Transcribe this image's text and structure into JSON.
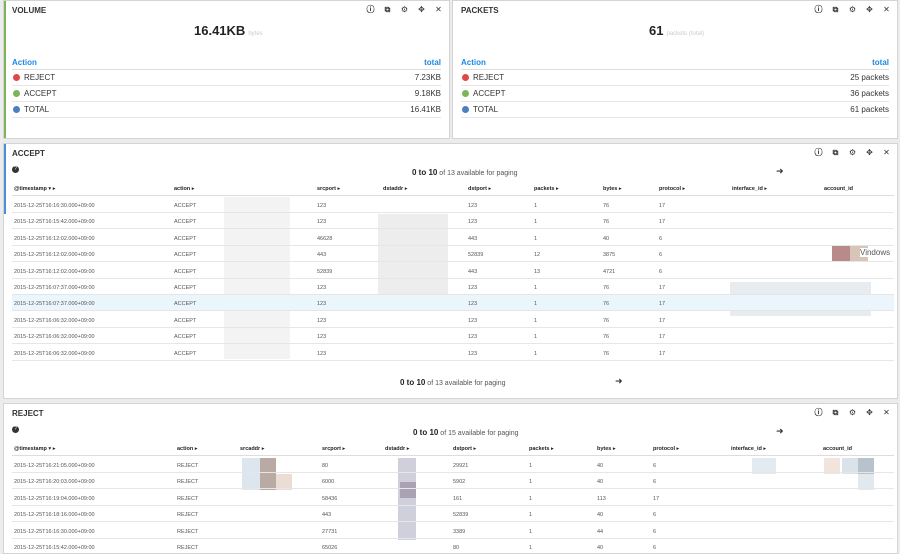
{
  "volume": {
    "title": "VOLUME",
    "total": "16.41KB",
    "total_unit": "bytes",
    "col_action": "Action",
    "col_total": "total",
    "rows": [
      {
        "label": "REJECT",
        "value": "7.23KB",
        "color": "#e04848"
      },
      {
        "label": "ACCEPT",
        "value": "9.18KB",
        "color": "#7cb45a"
      },
      {
        "label": "TOTAL",
        "value": "16.41KB",
        "color": "#4a7fc2"
      }
    ]
  },
  "packets": {
    "title": "PACKETS",
    "total": "61",
    "total_unit": "packets (total)",
    "col_action": "Action",
    "col_total": "total",
    "rows": [
      {
        "label": "REJECT",
        "value": "25 packets",
        "color": "#e04848"
      },
      {
        "label": "ACCEPT",
        "value": "36 packets",
        "color": "#7cb45a"
      },
      {
        "label": "TOTAL",
        "value": "61 packets",
        "color": "#4a7fc2"
      }
    ]
  },
  "panel_icons": [
    "info-icon",
    "copy-icon",
    "gear-icon",
    "move-icon",
    "close-icon"
  ],
  "accept": {
    "title": "ACCEPT",
    "paging_range": "0 to 10",
    "paging_text": "of 13 available for paging",
    "headers": [
      "@timestamp ▾ ▸",
      "action ▸",
      "",
      "srcport ▸",
      "dstaddr ▸",
      "dstport ▸",
      "packets ▸",
      "bytes ▸",
      "protocol ▸",
      "interface_id ▸",
      "account_id"
    ],
    "rows": [
      [
        "2015-12-25T16:16:30.000+09:00",
        "ACCEPT",
        "123",
        "123",
        "1",
        "76",
        "17"
      ],
      [
        "2015-12-25T16:15:42.000+09:00",
        "ACCEPT",
        "123",
        "123",
        "1",
        "76",
        "17"
      ],
      [
        "2015-12-25T16:12:02.000+09:00",
        "ACCEPT",
        "46628",
        "443",
        "1",
        "40",
        "6"
      ],
      [
        "2015-12-25T16:12:02.000+09:00",
        "ACCEPT",
        "443",
        "52839",
        "12",
        "3875",
        "6"
      ],
      [
        "2015-12-25T16:12:02.000+09:00",
        "ACCEPT",
        "52839",
        "443",
        "13",
        "4721",
        "6"
      ],
      [
        "2015-12-25T16:07:37.000+09:00",
        "ACCEPT",
        "123",
        "123",
        "1",
        "76",
        "17"
      ],
      [
        "2015-12-25T16:07:37.000+09:00",
        "ACCEPT",
        "123",
        "123",
        "1",
        "76",
        "17"
      ],
      [
        "2015-12-25T16:06:32.000+09:00",
        "ACCEPT",
        "123",
        "123",
        "1",
        "76",
        "17"
      ],
      [
        "2015-12-25T16:06:32.000+09:00",
        "ACCEPT",
        "123",
        "123",
        "1",
        "76",
        "17"
      ],
      [
        "2015-12-25T16:06:32.000+09:00",
        "ACCEPT",
        "123",
        "123",
        "1",
        "76",
        "17"
      ]
    ],
    "tooltip": "Vindows"
  },
  "reject": {
    "title": "REJECT",
    "paging_range": "0 to 10",
    "paging_text": "of 15 available for paging",
    "headers": [
      "@timestamp ▾ ▸",
      "action ▸",
      "srcaddr ▸",
      "srcport ▸",
      "dstaddr ▸",
      "dstport ▸",
      "packets ▸",
      "bytes ▸",
      "protocol ▸",
      "interface_id ▸",
      "account_id"
    ],
    "rows": [
      [
        "2015-12-25T16:21:05.000+09:00",
        "REJECT",
        "80",
        "29921",
        "1",
        "40",
        "6"
      ],
      [
        "2015-12-25T16:20:03.000+09:00",
        "REJECT",
        "6000",
        "5902",
        "1",
        "40",
        "6"
      ],
      [
        "2015-12-25T16:19:04.000+09:00",
        "REJECT",
        "58436",
        "161",
        "1",
        "113",
        "17"
      ],
      [
        "2015-12-25T16:18:16.000+09:00",
        "REJECT",
        "443",
        "52839",
        "1",
        "40",
        "6"
      ],
      [
        "2015-12-25T16:16:30.000+09:00",
        "REJECT",
        "27731",
        "3389",
        "1",
        "44",
        "6"
      ],
      [
        "2015-12-25T16:15:42.000+09:00",
        "REJECT",
        "65026",
        "80",
        "1",
        "40",
        "6"
      ]
    ]
  }
}
